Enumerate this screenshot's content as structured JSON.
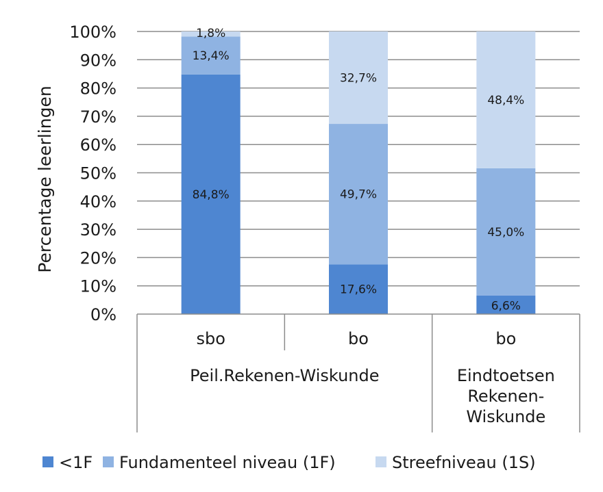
{
  "chart_data": {
    "type": "bar",
    "stacked": true,
    "ylabel": "Percentage leerlingen",
    "ylim": [
      0,
      100
    ],
    "yticks": [
      "0%",
      "10%",
      "20%",
      "30%",
      "40%",
      "50%",
      "60%",
      "70%",
      "80%",
      "90%",
      "100%"
    ],
    "grid": true,
    "legend_position": "bottom",
    "categories": [
      "sbo",
      "bo",
      "bo"
    ],
    "groups": [
      {
        "label": "Peil.Rekenen-Wiskunde",
        "lines": [
          "Peil.Rekenen-Wiskunde"
        ],
        "span": [
          0,
          1
        ]
      },
      {
        "label": "Eindtoetsen Rekenen-Wiskunde",
        "lines": [
          "Eindtoetsen",
          "Rekenen-",
          "Wiskunde"
        ],
        "span": [
          2,
          2
        ]
      }
    ],
    "series": [
      {
        "name": "<1F",
        "color": "#4e86d1",
        "values": [
          84.8,
          17.6,
          6.6
        ],
        "labels": [
          "84,8%",
          "17,6%",
          "6,6%"
        ]
      },
      {
        "name": "Fundamenteel niveau (1F)",
        "color": "#8fb3e2",
        "values": [
          13.4,
          49.7,
          45.0
        ],
        "labels": [
          "13,4%",
          "49,7%",
          "45,0%"
        ]
      },
      {
        "name": "Streefniveau (1S)",
        "color": "#c7d9f0",
        "values": [
          1.8,
          32.7,
          48.4
        ],
        "labels": [
          "1,8%",
          "32,7%",
          "48,4%"
        ]
      }
    ]
  }
}
